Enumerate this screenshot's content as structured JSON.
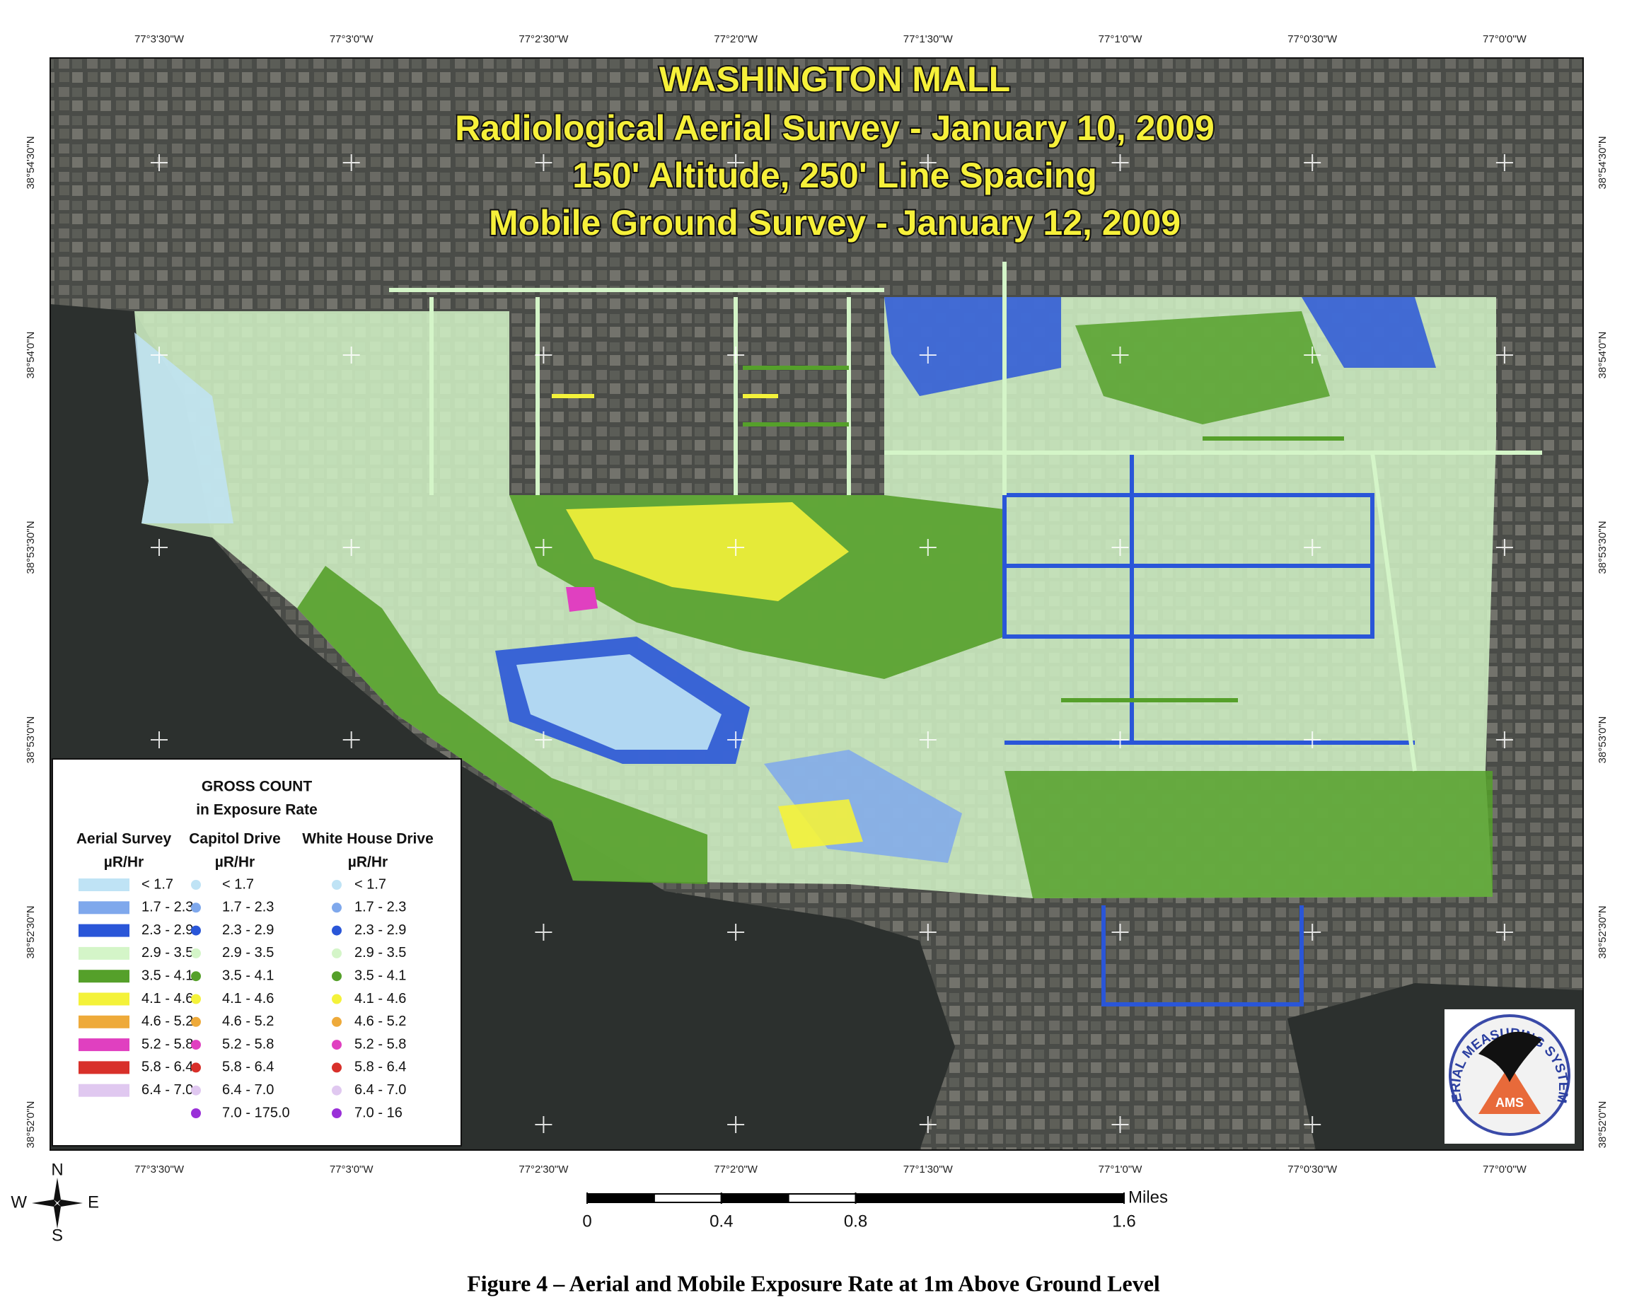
{
  "title": [
    "WASHINGTON MALL",
    "Radiological Aerial Survey - January 10, 2009",
    "150' Altitude, 250' Line Spacing",
    "Mobile Ground Survey - January 12, 2009"
  ],
  "longitude_labels": [
    "77°3'30\"W",
    "77°3'0\"W",
    "77°2'30\"W",
    "77°2'0\"W",
    "77°1'30\"W",
    "77°1'0\"W",
    "77°0'30\"W",
    "77°0'0\"W"
  ],
  "latitude_labels": [
    "38°54'30\"N",
    "38°54'0\"N",
    "38°53'30\"N",
    "38°53'0\"N",
    "38°52'30\"N",
    "38°52'0\"N"
  ],
  "legend": {
    "title": "GROSS COUNT",
    "subtitle": "in Exposure Rate",
    "columns": [
      {
        "name": "Aerial Survey",
        "unit": "µR/Hr",
        "items": [
          {
            "label": "< 1.7",
            "color": "#bfe3f5"
          },
          {
            "label": "1.7 - 2.3",
            "color": "#7fa8ec"
          },
          {
            "label": "2.3 - 2.9",
            "color": "#2a56d8"
          },
          {
            "label": "2.9 - 3.5",
            "color": "#d4f5c8"
          },
          {
            "label": "3.5 - 4.1",
            "color": "#55a02a"
          },
          {
            "label": "4.1 - 4.6",
            "color": "#f4f23a"
          },
          {
            "label": "4.6 - 5.2",
            "color": "#eeaa3a"
          },
          {
            "label": "5.2 - 5.8",
            "color": "#e040c0"
          },
          {
            "label": "5.8 - 6.4",
            "color": "#d8302a"
          },
          {
            "label": "6.4 - 7.0",
            "color": "#e0c8f0"
          }
        ]
      },
      {
        "name": "Capitol Drive",
        "unit": "µR/Hr",
        "items": [
          {
            "label": "< 1.7",
            "color": "#bfe3f5"
          },
          {
            "label": "1.7 - 2.3",
            "color": "#7fa8ec"
          },
          {
            "label": "2.3 - 2.9",
            "color": "#2a56d8"
          },
          {
            "label": "2.9 - 3.5",
            "color": "#d4f5c8"
          },
          {
            "label": "3.5 - 4.1",
            "color": "#55a02a"
          },
          {
            "label": "4.1 - 4.6",
            "color": "#f4f23a"
          },
          {
            "label": "4.6 - 5.2",
            "color": "#eeaa3a"
          },
          {
            "label": "5.2 - 5.8",
            "color": "#e040c0"
          },
          {
            "label": "5.8 - 6.4",
            "color": "#d8302a"
          },
          {
            "label": "6.4 - 7.0",
            "color": "#e0c8f0"
          },
          {
            "label": "7.0 - 175.0",
            "color": "#9a30d8"
          }
        ]
      },
      {
        "name": "White House Drive",
        "unit": "µR/Hr",
        "items": [
          {
            "label": "< 1.7",
            "color": "#bfe3f5"
          },
          {
            "label": "1.7 - 2.3",
            "color": "#7fa8ec"
          },
          {
            "label": "2.3 - 2.9",
            "color": "#2a56d8"
          },
          {
            "label": "2.9 - 3.5",
            "color": "#d4f5c8"
          },
          {
            "label": "3.5 - 4.1",
            "color": "#55a02a"
          },
          {
            "label": "4.1 - 4.6",
            "color": "#f4f23a"
          },
          {
            "label": "4.6 - 5.2",
            "color": "#eeaa3a"
          },
          {
            "label": "5.2 - 5.8",
            "color": "#e040c0"
          },
          {
            "label": "5.8 - 6.4",
            "color": "#d8302a"
          },
          {
            "label": "6.4 - 7.0",
            "color": "#e0c8f0"
          },
          {
            "label": "7.0 - 16",
            "color": "#9a30d8"
          }
        ]
      }
    ]
  },
  "scale_bar": {
    "unit": "Miles",
    "ticks": [
      0,
      0.4,
      0.8,
      1.6
    ]
  },
  "compass": [
    "N",
    "E",
    "S",
    "W"
  ],
  "logo": {
    "ring": "AERIAL MEASURING SYSTEMS",
    "badge": "AMS"
  },
  "caption": "Figure 4 – Aerial and Mobile Exposure Rate at 1m Above Ground Level"
}
